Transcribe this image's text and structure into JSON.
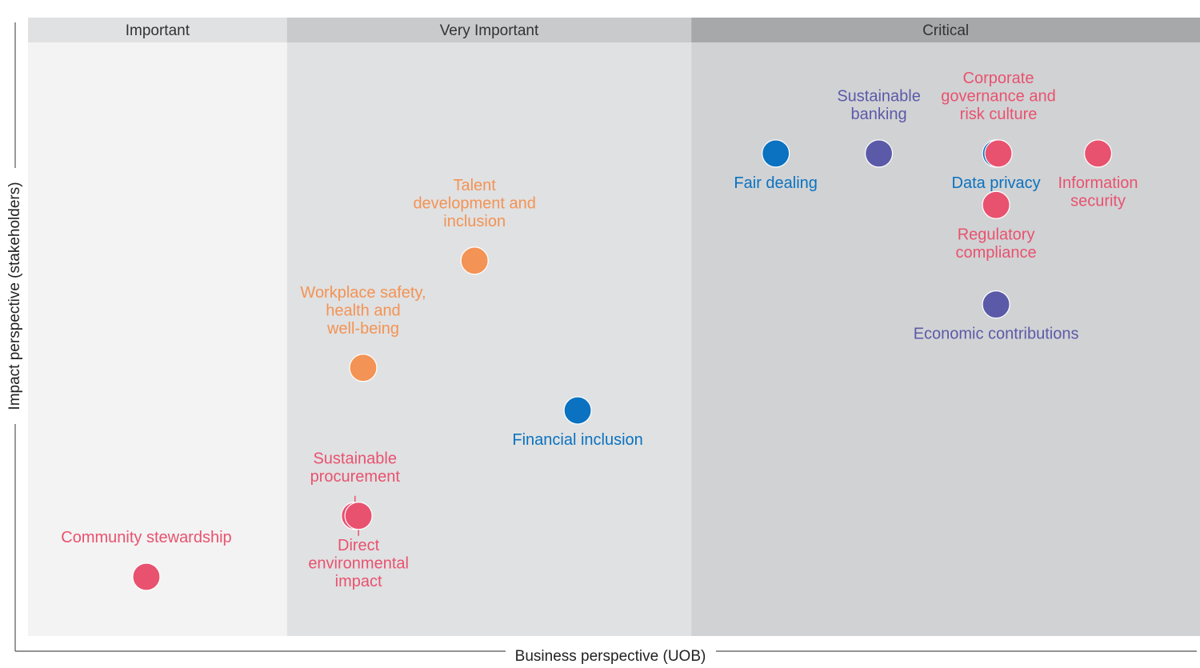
{
  "chart_data": {
    "type": "scatter",
    "xlabel": "Business perspective (UOB)",
    "ylabel": "Impact perspective (stakeholders)",
    "xlim": [
      0,
      100
    ],
    "ylim": [
      0,
      100
    ],
    "grid": false,
    "zones": [
      {
        "label": "Important",
        "from": 0,
        "to": 22.1,
        "color": "#f3f3f3",
        "header_color": "#e0e1e2"
      },
      {
        "label": "Very Important",
        "from": 22.1,
        "to": 56.6,
        "color": "#e0e1e2",
        "header_color": "#c9cacc"
      },
      {
        "label": "Critical",
        "from": 56.6,
        "to": 100,
        "color": "#d1d2d4",
        "header_color": "#a7a8aa"
      }
    ],
    "colors": {
      "pink": "#e8526f",
      "blue": "#0a72c0",
      "purple": "#5b5aa8",
      "orange": "#f39355"
    },
    "points": [
      {
        "label": [
          "Community stewardship"
        ],
        "x": 10.1,
        "y": 10.0,
        "color": "pink",
        "pos": "above"
      },
      {
        "label": [
          "Sustainable",
          "procurement"
        ],
        "x": 27.9,
        "y": 20.3,
        "color": "pink",
        "pos": "above",
        "leader": true
      },
      {
        "label": [
          "Direct",
          "environmental",
          "impact"
        ],
        "x": 28.2,
        "y": 20.3,
        "color": "pink",
        "pos": "below",
        "leader": true
      },
      {
        "label": [
          "Workplace safety,",
          "health and",
          "well-being"
        ],
        "x": 28.6,
        "y": 45.3,
        "color": "orange",
        "pos": "above"
      },
      {
        "label": [
          "Talent",
          "development and",
          "inclusion"
        ],
        "x": 38.1,
        "y": 63.4,
        "color": "orange",
        "pos": "above"
      },
      {
        "label": [
          "Financial inclusion"
        ],
        "x": 46.9,
        "y": 38.1,
        "color": "blue",
        "pos": "below"
      },
      {
        "label": [
          "Fair dealing"
        ],
        "x": 63.8,
        "y": 81.5,
        "color": "blue",
        "pos": "below"
      },
      {
        "label": [
          "Sustainable",
          "banking"
        ],
        "x": 72.6,
        "y": 81.5,
        "color": "purple",
        "pos": "above"
      },
      {
        "label": [
          "Data privacy"
        ],
        "x": 82.6,
        "y": 81.5,
        "color": "blue",
        "pos": "below"
      },
      {
        "label": [
          "Corporate",
          "governance and",
          "risk culture"
        ],
        "x": 82.8,
        "y": 81.5,
        "color": "pink",
        "pos": "above"
      },
      {
        "label": [
          "Information",
          "security"
        ],
        "x": 91.3,
        "y": 81.5,
        "color": "pink",
        "pos": "below"
      },
      {
        "label": [
          "Regulatory",
          "compliance"
        ],
        "x": 82.6,
        "y": 72.8,
        "color": "pink",
        "pos": "below"
      },
      {
        "label": [
          "Economic contributions"
        ],
        "x": 82.6,
        "y": 56.0,
        "color": "purple",
        "pos": "below"
      }
    ]
  }
}
